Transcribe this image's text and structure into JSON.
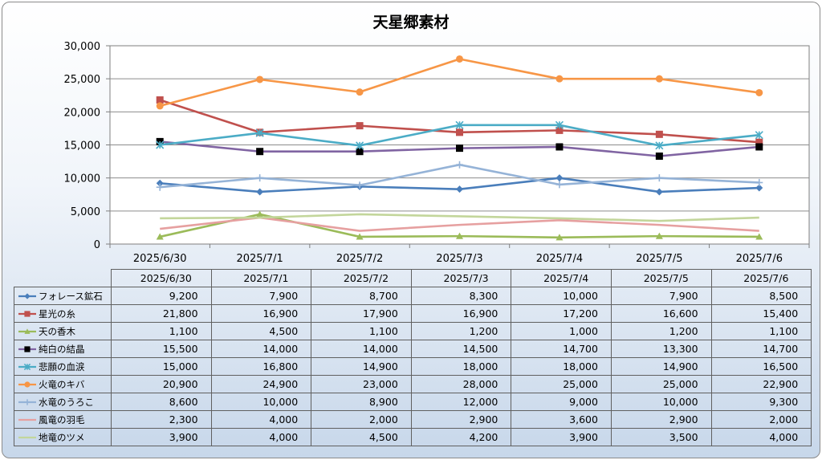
{
  "chart_data": {
    "type": "line",
    "title": "天星郷素材",
    "categories": [
      "2025/6/30",
      "2025/7/1",
      "2025/7/2",
      "2025/7/3",
      "2025/7/4",
      "2025/7/5",
      "2025/7/6"
    ],
    "ylim": [
      0,
      30000
    ],
    "yticks": [
      "0",
      "5,000",
      "10,000",
      "15,000",
      "20,000",
      "25,000",
      "30,000"
    ],
    "grid": true,
    "legend": "data-table",
    "series": [
      {
        "name": "フォレース鉱石",
        "color": "#4a7ebb",
        "marker": "diamond",
        "values": [
          9200,
          7900,
          8700,
          8300,
          10000,
          7900,
          8500
        ],
        "labels": [
          "9,200",
          "7,900",
          "8,700",
          "8,300",
          "10,000",
          "7,900",
          "8,500"
        ]
      },
      {
        "name": "星光の糸",
        "color": "#c0504d",
        "marker": "square",
        "values": [
          21800,
          16900,
          17900,
          16900,
          17200,
          16600,
          15400
        ],
        "labels": [
          "21,800",
          "16,900",
          "17,900",
          "16,900",
          "17,200",
          "16,600",
          "15,400"
        ]
      },
      {
        "name": "天の香木",
        "color": "#9bbb59",
        "marker": "triangle",
        "values": [
          1100,
          4500,
          1100,
          1200,
          1000,
          1200,
          1100
        ],
        "labels": [
          "1,100",
          "4,500",
          "1,100",
          "1,200",
          "1,000",
          "1,200",
          "1,100"
        ]
      },
      {
        "name": "純白の結晶",
        "color": "#8064a2",
        "marker": "blacksquare",
        "values": [
          15500,
          14000,
          14000,
          14500,
          14700,
          13300,
          14700
        ],
        "labels": [
          "15,500",
          "14,000",
          "14,000",
          "14,500",
          "14,700",
          "13,300",
          "14,700"
        ]
      },
      {
        "name": "悲願の血涙",
        "color": "#4bacc6",
        "marker": "star",
        "values": [
          15000,
          16800,
          14900,
          18000,
          18000,
          14900,
          16500
        ],
        "labels": [
          "15,000",
          "16,800",
          "14,900",
          "18,000",
          "18,000",
          "14,900",
          "16,500"
        ]
      },
      {
        "name": "火竜のキバ",
        "color": "#f79646",
        "marker": "circle",
        "values": [
          20900,
          24900,
          23000,
          28000,
          25000,
          25000,
          22900
        ],
        "labels": [
          "20,900",
          "24,900",
          "23,000",
          "28,000",
          "25,000",
          "25,000",
          "22,900"
        ]
      },
      {
        "name": "水竜のうろこ",
        "color": "#95b3d7",
        "marker": "plus",
        "values": [
          8600,
          10000,
          8900,
          12000,
          9000,
          10000,
          9300
        ],
        "labels": [
          "8,600",
          "10,000",
          "8,900",
          "12,000",
          "9,000",
          "10,000",
          "9,300"
        ]
      },
      {
        "name": "風竜の羽毛",
        "color": "#e6a0a0",
        "marker": "none",
        "values": [
          2300,
          4000,
          2000,
          2900,
          3600,
          2900,
          2000
        ],
        "labels": [
          "2,300",
          "4,000",
          "2,000",
          "2,900",
          "3,600",
          "2,900",
          "2,000"
        ]
      },
      {
        "name": "地竜のツメ",
        "color": "#c3d69b",
        "marker": "none",
        "values": [
          3900,
          4000,
          4500,
          4200,
          3900,
          3500,
          4000
        ],
        "labels": [
          "3,900",
          "4,000",
          "4,500",
          "4,200",
          "3,900",
          "3,500",
          "4,000"
        ]
      }
    ]
  }
}
